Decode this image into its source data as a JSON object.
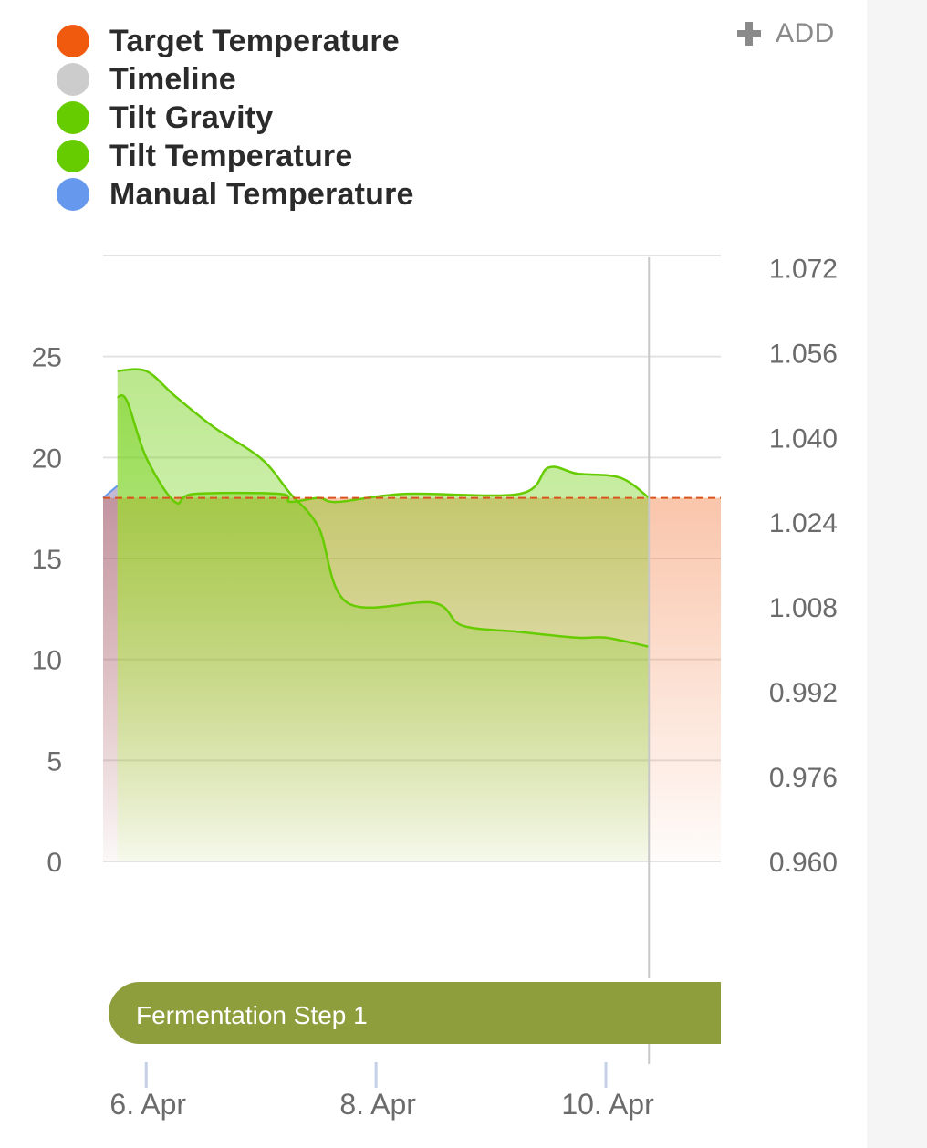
{
  "legend": {
    "items": [
      {
        "label": "Target Temperature",
        "color": "#f05a0f"
      },
      {
        "label": "Timeline",
        "color": "#cccccc"
      },
      {
        "label": "Tilt Gravity",
        "color": "#66cc00"
      },
      {
        "label": "Tilt Temperature",
        "color": "#66cc00"
      },
      {
        "label": "Manual Temperature",
        "color": "#6699ee"
      }
    ]
  },
  "toolbar": {
    "add_label": "ADD",
    "add_icon": "plus-icon"
  },
  "chart_data": {
    "type": "area",
    "x_axis": {
      "type": "date",
      "range": [
        "2023-04-05T15:00",
        "2023-04-11T00:00"
      ],
      "ticks": [
        {
          "value": "2023-04-06T00:00",
          "label": "6. Apr"
        },
        {
          "value": "2023-04-08T00:00",
          "label": "8. Apr"
        },
        {
          "value": "2023-04-10T00:00",
          "label": "10. Apr"
        }
      ]
    },
    "y_axis_left": {
      "range": [
        0,
        30
      ],
      "ticks": [
        0,
        5,
        10,
        15,
        20,
        25
      ]
    },
    "y_axis_right": {
      "range": [
        0.96,
        1.0743
      ],
      "ticks": [
        "0.960",
        "0.976",
        "0.992",
        "1.008",
        "1.024",
        "1.040",
        "1.056",
        "1.072"
      ]
    },
    "grid": true,
    "now_marker": "2023-04-10T09:00",
    "series": [
      {
        "name": "Target Temperature",
        "axis": "left",
        "color": "#f05a0f",
        "style": "dashed",
        "points": [
          [
            "2023-04-05T15:00",
            18.0
          ],
          [
            "2023-04-11T00:00",
            18.0
          ]
        ]
      },
      {
        "name": "Manual Temperature",
        "axis": "left",
        "color": "#6699ee",
        "points": [
          [
            "2023-04-05T15:00",
            18.0
          ],
          [
            "2023-04-05T18:00",
            18.6
          ]
        ]
      },
      {
        "name": "Tilt Gravity",
        "axis": "right",
        "color": "#66cc00",
        "points": [
          [
            "2023-04-05T18:00",
            1.0525
          ],
          [
            "2023-04-06T00:00",
            1.0525
          ],
          [
            "2023-04-06T06:00",
            1.0478
          ],
          [
            "2023-04-06T14:00",
            1.042
          ],
          [
            "2023-04-07T00:00",
            1.036
          ],
          [
            "2023-04-07T06:00",
            1.0295
          ],
          [
            "2023-04-07T12:00",
            1.023
          ],
          [
            "2023-04-07T18:00",
            1.0088
          ],
          [
            "2023-04-08T12:00",
            1.0088
          ],
          [
            "2023-04-08T18:00",
            1.0045
          ],
          [
            "2023-04-09T06:00",
            1.0033
          ],
          [
            "2023-04-09T18:00",
            1.0022
          ],
          [
            "2023-04-10T00:00",
            1.0022
          ],
          [
            "2023-04-10T09:00",
            1.0005
          ]
        ]
      },
      {
        "name": "Tilt Temperature",
        "axis": "left",
        "color": "#66cc00",
        "points": [
          [
            "2023-04-05T18:00",
            23.0
          ],
          [
            "2023-04-05T20:00",
            22.8
          ],
          [
            "2023-04-06T00:00",
            20.0
          ],
          [
            "2023-04-06T06:00",
            17.8
          ],
          [
            "2023-04-06T10:00",
            18.2
          ],
          [
            "2023-04-07T04:00",
            18.2
          ],
          [
            "2023-04-07T06:00",
            17.8
          ],
          [
            "2023-04-07T12:00",
            18.0
          ],
          [
            "2023-04-07T16:00",
            17.8
          ],
          [
            "2023-04-08T06:00",
            18.2
          ],
          [
            "2023-04-09T06:00",
            18.2
          ],
          [
            "2023-04-09T12:00",
            19.5
          ],
          [
            "2023-04-09T18:00",
            19.2
          ],
          [
            "2023-04-10T03:00",
            19.0
          ],
          [
            "2023-04-10T09:00",
            18.0
          ]
        ]
      }
    ],
    "timeline": [
      {
        "label": "Fermentation Step 1",
        "start": "2023-04-05T15:00",
        "end": "2023-04-11T00:00",
        "color": "#8e9e3c"
      }
    ]
  }
}
